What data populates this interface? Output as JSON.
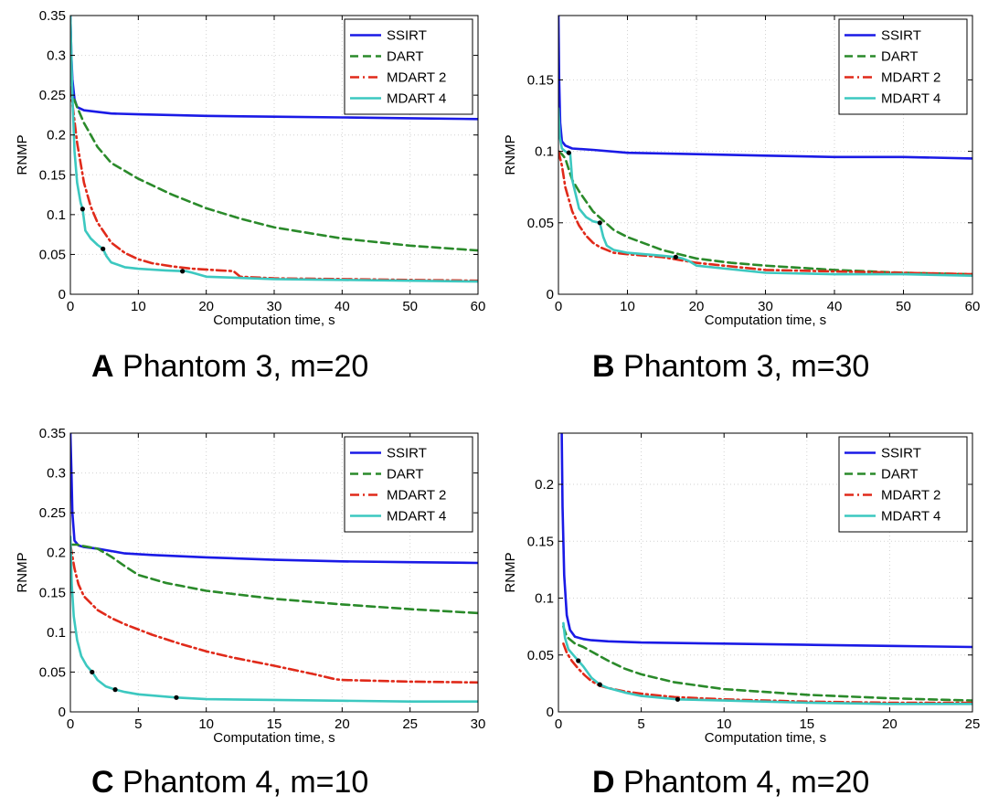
{
  "panels": [
    {
      "letter": "A",
      "caption": "Phantom 3, m=20"
    },
    {
      "letter": "B",
      "caption": "Phantom 3, m=30"
    },
    {
      "letter": "C",
      "caption": "Phantom 4, m=10"
    },
    {
      "letter": "D",
      "caption": "Phantom 4, m=20"
    }
  ],
  "colors": {
    "SSIRT": "#1a1ae6",
    "DART": "#2a8a2a",
    "MDART 2": "#e02a1a",
    "MDART 4": "#3cc8c0",
    "markers": "#000000"
  },
  "chart_data": [
    {
      "type": "line",
      "panel": "A",
      "xlabel": "Computation time, s",
      "ylabel": "RNMP",
      "xlim": [
        0,
        60
      ],
      "ylim": [
        0,
        0.35
      ],
      "xticks": [
        0,
        10,
        20,
        30,
        40,
        50,
        60
      ],
      "yticks": [
        0,
        0.05,
        0.1,
        0.15,
        0.2,
        0.25,
        0.3,
        0.35
      ],
      "ytick_labels": [
        "0",
        "0.05",
        "0.1",
        "0.15",
        "0.2",
        "0.25",
        "0.3",
        "0.35"
      ],
      "grid": true,
      "legend_position": "top-right",
      "series": [
        {
          "name": "SSIRT",
          "style": "solid",
          "x": [
            0,
            0.15,
            0.3,
            0.6,
            1,
            2,
            4,
            6,
            10,
            20,
            30,
            40,
            50,
            60
          ],
          "y": [
            0.35,
            0.3,
            0.27,
            0.245,
            0.235,
            0.231,
            0.229,
            0.227,
            0.226,
            0.224,
            0.223,
            0.222,
            0.221,
            0.22
          ]
        },
        {
          "name": "DART",
          "style": "dashed",
          "x": [
            0,
            0.3,
            1,
            2,
            4,
            6,
            10,
            15,
            20,
            25,
            30,
            40,
            50,
            60
          ],
          "y": [
            0.26,
            0.25,
            0.235,
            0.215,
            0.185,
            0.165,
            0.145,
            0.125,
            0.108,
            0.095,
            0.084,
            0.07,
            0.061,
            0.055
          ]
        },
        {
          "name": "MDART 2",
          "style": "dashdot",
          "x": [
            0,
            0.3,
            1,
            2,
            3,
            4,
            6,
            8,
            10,
            12,
            15,
            18,
            22,
            24,
            25,
            30,
            40,
            50,
            60
          ],
          "y": [
            0.26,
            0.24,
            0.19,
            0.14,
            0.11,
            0.09,
            0.065,
            0.052,
            0.044,
            0.039,
            0.035,
            0.032,
            0.03,
            0.029,
            0.022,
            0.02,
            0.019,
            0.018,
            0.017
          ]
        },
        {
          "name": "MDART 4",
          "style": "solid",
          "x": [
            0,
            0.15,
            0.3,
            0.6,
            1,
            1.5,
            1.8,
            2.2,
            3,
            4,
            4.8,
            5.3,
            6,
            8,
            10,
            14,
            16.5,
            17,
            18,
            20,
            30,
            40,
            50,
            60
          ],
          "y": [
            0.35,
            0.3,
            0.25,
            0.18,
            0.14,
            0.115,
            0.107,
            0.08,
            0.07,
            0.062,
            0.057,
            0.048,
            0.04,
            0.034,
            0.032,
            0.03,
            0.029,
            0.029,
            0.027,
            0.022,
            0.019,
            0.018,
            0.017,
            0.016
          ]
        }
      ],
      "markers": [
        {
          "x": 1.8,
          "y": 0.107
        },
        {
          "x": 4.8,
          "y": 0.057
        },
        {
          "x": 16.5,
          "y": 0.029
        }
      ]
    },
    {
      "type": "line",
      "panel": "B",
      "xlabel": "Computation time, s",
      "ylabel": "RNMP",
      "xlim": [
        0,
        60
      ],
      "ylim": [
        0,
        0.195
      ],
      "xticks": [
        0,
        10,
        20,
        30,
        40,
        50,
        60
      ],
      "yticks": [
        0,
        0.05,
        0.1,
        0.15
      ],
      "ytick_labels": [
        "0",
        "0.05",
        "0.1",
        "0.15"
      ],
      "grid": true,
      "legend_position": "top-right",
      "series": [
        {
          "name": "SSIRT",
          "style": "solid",
          "x": [
            0,
            0.1,
            0.25,
            0.5,
            1,
            2,
            5,
            10,
            20,
            30,
            40,
            50,
            60
          ],
          "y": [
            0.195,
            0.15,
            0.12,
            0.107,
            0.104,
            0.102,
            0.101,
            0.099,
            0.098,
            0.097,
            0.096,
            0.096,
            0.095
          ]
        },
        {
          "name": "DART",
          "style": "dashed",
          "x": [
            0,
            0.5,
            1,
            2,
            3,
            5,
            8,
            10,
            15,
            20,
            25,
            30,
            40,
            50,
            60
          ],
          "y": [
            0.1,
            0.098,
            0.095,
            0.08,
            0.072,
            0.058,
            0.045,
            0.04,
            0.031,
            0.025,
            0.022,
            0.02,
            0.017,
            0.015,
            0.014
          ]
        },
        {
          "name": "MDART 2",
          "style": "dashdot",
          "x": [
            0,
            0.5,
            1,
            2,
            3,
            4,
            5,
            6,
            8,
            10,
            15,
            20,
            30,
            40,
            50,
            60
          ],
          "y": [
            0.1,
            0.09,
            0.075,
            0.058,
            0.048,
            0.041,
            0.036,
            0.033,
            0.029,
            0.028,
            0.026,
            0.022,
            0.017,
            0.016,
            0.015,
            0.014
          ]
        },
        {
          "name": "MDART 4",
          "style": "solid",
          "x": [
            0,
            0.2,
            0.5,
            1,
            1.3,
            1.7,
            2,
            3,
            4,
            5,
            6,
            6.5,
            7,
            8,
            10,
            15,
            17,
            18,
            19,
            20,
            30,
            40,
            50,
            60
          ],
          "y": [
            0.13,
            0.11,
            0.102,
            0.1,
            0.099,
            0.099,
            0.08,
            0.06,
            0.054,
            0.051,
            0.05,
            0.04,
            0.034,
            0.031,
            0.029,
            0.027,
            0.026,
            0.025,
            0.023,
            0.02,
            0.015,
            0.014,
            0.014,
            0.013
          ]
        }
      ],
      "markers": [
        {
          "x": 1.5,
          "y": 0.099
        },
        {
          "x": 6,
          "y": 0.05
        },
        {
          "x": 17,
          "y": 0.026
        }
      ]
    },
    {
      "type": "line",
      "panel": "C",
      "xlabel": "Computation time, s",
      "ylabel": "RNMP",
      "xlim": [
        0,
        30
      ],
      "ylim": [
        0,
        0.35
      ],
      "xticks": [
        0,
        5,
        10,
        15,
        20,
        25,
        30
      ],
      "yticks": [
        0,
        0.05,
        0.1,
        0.15,
        0.2,
        0.25,
        0.3,
        0.35
      ],
      "ytick_labels": [
        "0",
        "0.05",
        "0.1",
        "0.15",
        "0.2",
        "0.25",
        "0.3",
        "0.35"
      ],
      "grid": true,
      "legend_position": "top-right",
      "series": [
        {
          "name": "SSIRT",
          "style": "solid",
          "x": [
            0,
            0.08,
            0.15,
            0.3,
            0.6,
            1,
            2,
            3,
            4,
            6,
            10,
            15,
            20,
            25,
            30
          ],
          "y": [
            0.35,
            0.3,
            0.25,
            0.215,
            0.209,
            0.207,
            0.205,
            0.202,
            0.199,
            0.197,
            0.194,
            0.191,
            0.189,
            0.188,
            0.187
          ]
        },
        {
          "name": "DART",
          "style": "dashed",
          "x": [
            0,
            0.5,
            1,
            2,
            3,
            4,
            5,
            7,
            10,
            15,
            20,
            25,
            30
          ],
          "y": [
            0.21,
            0.21,
            0.208,
            0.205,
            0.195,
            0.183,
            0.172,
            0.162,
            0.152,
            0.142,
            0.135,
            0.129,
            0.124
          ]
        },
        {
          "name": "MDART 2",
          "style": "dashdot",
          "x": [
            0,
            0.3,
            0.6,
            1,
            2,
            3,
            4,
            6,
            8,
            10,
            12,
            15,
            18,
            19.5,
            20,
            25,
            30
          ],
          "y": [
            0.21,
            0.18,
            0.16,
            0.145,
            0.128,
            0.118,
            0.11,
            0.097,
            0.086,
            0.076,
            0.068,
            0.058,
            0.047,
            0.041,
            0.04,
            0.038,
            0.037
          ]
        },
        {
          "name": "MDART 4",
          "style": "solid",
          "x": [
            0,
            0.1,
            0.25,
            0.5,
            0.8,
            1.2,
            1.6,
            2,
            2.6,
            3.3,
            4,
            5,
            7.8,
            10,
            15,
            20,
            25,
            30
          ],
          "y": [
            0.22,
            0.16,
            0.12,
            0.09,
            0.07,
            0.058,
            0.05,
            0.04,
            0.032,
            0.028,
            0.025,
            0.022,
            0.018,
            0.016,
            0.015,
            0.014,
            0.013,
            0.013
          ]
        }
      ],
      "markers": [
        {
          "x": 1.6,
          "y": 0.05
        },
        {
          "x": 3.3,
          "y": 0.028
        },
        {
          "x": 7.8,
          "y": 0.018
        }
      ]
    },
    {
      "type": "line",
      "panel": "D",
      "xlabel": "Computation time, s",
      "ylabel": "RNMP",
      "xlim": [
        0,
        25
      ],
      "ylim": [
        0,
        0.245
      ],
      "xticks": [
        0,
        5,
        10,
        15,
        20,
        25
      ],
      "yticks": [
        0,
        0.05,
        0.1,
        0.15,
        0.2
      ],
      "ytick_labels": [
        "0",
        "0.05",
        "0.1",
        "0.15",
        "0.2"
      ],
      "grid": true,
      "legend_position": "top-right",
      "series": [
        {
          "name": "SSIRT",
          "style": "solid",
          "x": [
            0.2,
            0.25,
            0.35,
            0.5,
            0.7,
            1,
            1.5,
            2,
            3,
            5,
            10,
            15,
            20,
            25
          ],
          "y": [
            0.245,
            0.18,
            0.12,
            0.085,
            0.072,
            0.066,
            0.064,
            0.063,
            0.062,
            0.061,
            0.06,
            0.059,
            0.058,
            0.057
          ]
        },
        {
          "name": "DART",
          "style": "dashed",
          "x": [
            0.3,
            0.5,
            1,
            1.5,
            2,
            3,
            4,
            5,
            7,
            10,
            15,
            20,
            25
          ],
          "y": [
            0.075,
            0.066,
            0.06,
            0.057,
            0.053,
            0.045,
            0.038,
            0.033,
            0.026,
            0.02,
            0.015,
            0.012,
            0.01
          ]
        },
        {
          "name": "MDART 2",
          "style": "dashdot",
          "x": [
            0.3,
            0.5,
            0.8,
            1.2,
            1.6,
            2,
            2.5,
            3,
            4,
            5,
            7,
            10,
            15,
            20,
            25
          ],
          "y": [
            0.06,
            0.052,
            0.045,
            0.038,
            0.032,
            0.027,
            0.023,
            0.021,
            0.018,
            0.016,
            0.013,
            0.011,
            0.009,
            0.008,
            0.008
          ]
        },
        {
          "name": "MDART 4",
          "style": "solid",
          "x": [
            0.3,
            0.4,
            0.6,
            0.9,
            1.2,
            1.5,
            2,
            2.5,
            3,
            4,
            5,
            7.2,
            10,
            15,
            20,
            25
          ],
          "y": [
            0.078,
            0.065,
            0.055,
            0.05,
            0.045,
            0.04,
            0.03,
            0.024,
            0.021,
            0.017,
            0.014,
            0.011,
            0.01,
            0.008,
            0.007,
            0.007
          ]
        }
      ],
      "markers": [
        {
          "x": 1.2,
          "y": 0.045
        },
        {
          "x": 2.5,
          "y": 0.024
        },
        {
          "x": 7.2,
          "y": 0.011
        }
      ]
    }
  ]
}
